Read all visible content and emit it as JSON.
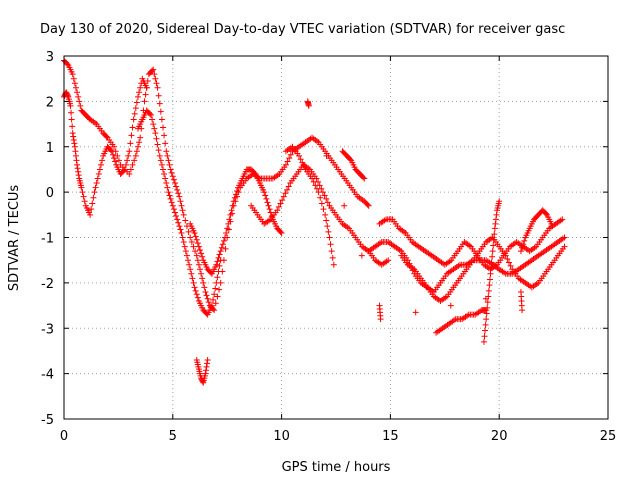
{
  "chart_data": {
    "type": "scatter",
    "title": "Day 130 of 2020, Sidereal Day-to-day VTEC variation (SDTVAR) for receiver gasc",
    "xlabel": "GPS time / hours",
    "ylabel": "SDTVAR / TECUs",
    "xlim": [
      0,
      25
    ],
    "ylim": [
      -5,
      3
    ],
    "xticks": [
      "0",
      "5",
      "10",
      "15",
      "20",
      "25"
    ],
    "yticks": [
      "3",
      "2",
      "1",
      "0",
      "-1",
      "-2",
      "-3",
      "-4",
      "-5"
    ],
    "grid": true,
    "marker": "+",
    "series": [
      {
        "name": "SDTVAR",
        "color": "#ff0000",
        "tracks": [
          {
            "x": [
              0.0,
              0.2,
              0.4,
              0.6,
              0.8,
              1.0,
              1.2,
              1.5,
              1.8,
              2.0,
              2.3,
              2.6,
              3.0,
              3.3,
              3.5,
              3.7,
              3.9,
              4.1,
              4.3,
              4.5,
              4.7,
              4.9,
              5.1,
              5.3,
              5.5,
              5.8,
              6.1,
              6.3,
              6.5,
              6.7,
              6.9,
              7.2,
              7.5,
              7.8,
              8.1,
              8.4,
              8.7,
              9.0,
              9.3,
              9.6,
              9.9,
              10.2,
              10.5,
              10.8,
              11.1,
              11.4,
              11.7,
              12.0,
              12.3,
              12.6,
              12.9,
              13.2,
              13.5,
              13.8,
              14.0
            ],
            "y": [
              2.9,
              2.8,
              2.6,
              2.2,
              1.8,
              1.7,
              1.6,
              1.5,
              1.3,
              1.2,
              1.0,
              0.6,
              0.4,
              0.8,
              1.2,
              2.0,
              2.6,
              2.7,
              2.3,
              1.6,
              0.9,
              0.5,
              0.2,
              -0.1,
              -0.5,
              -1.0,
              -1.4,
              -1.8,
              -2.2,
              -2.5,
              -2.6,
              -2.0,
              -1.0,
              -0.3,
              0.1,
              0.3,
              0.4,
              0.3,
              0.3,
              0.3,
              0.4,
              0.6,
              0.9,
              1.0,
              1.1,
              1.2,
              1.1,
              0.9,
              0.7,
              0.5,
              0.3,
              0.1,
              -0.1,
              -0.2,
              -0.3
            ]
          },
          {
            "x": [
              0.0,
              0.1,
              0.2,
              0.3,
              0.4,
              0.5,
              0.6,
              0.7,
              0.8,
              1.0,
              1.2,
              1.4,
              1.6,
              1.8,
              2.0,
              2.2,
              2.4,
              2.6,
              2.8,
              3.0,
              3.2,
              3.4,
              3.6,
              3.8
            ],
            "y": [
              2.1,
              2.2,
              2.1,
              1.9,
              1.3,
              1.0,
              0.6,
              0.3,
              0.1,
              -0.3,
              -0.5,
              0.0,
              0.4,
              0.8,
              1.0,
              0.9,
              0.6,
              0.4,
              0.5,
              0.9,
              1.6,
              2.1,
              2.5,
              2.3
            ]
          },
          {
            "x": [
              3.4,
              3.6,
              3.8,
              4.0,
              4.2,
              4.4,
              4.6,
              4.8,
              5.0,
              5.2,
              5.4,
              5.6,
              5.8,
              6.0,
              6.2,
              6.4,
              6.6,
              6.8,
              7.0,
              7.2
            ],
            "y": [
              1.4,
              1.6,
              1.8,
              1.7,
              1.3,
              0.8,
              0.4,
              0.0,
              -0.3,
              -0.6,
              -0.9,
              -1.3,
              -1.7,
              -2.1,
              -2.4,
              -2.6,
              -2.7,
              -2.5,
              -2.0,
              -1.5
            ]
          },
          {
            "x": [
              5.8,
              6.0,
              6.2,
              6.4,
              6.6,
              6.8,
              7.0,
              7.2,
              7.4,
              7.6,
              7.8,
              8.0,
              8.2,
              8.4,
              8.6,
              8.8,
              9.0,
              9.2,
              9.4,
              9.6,
              9.8,
              10.0
            ],
            "y": [
              -0.7,
              -0.9,
              -1.2,
              -1.5,
              -1.7,
              -1.8,
              -1.6,
              -1.3,
              -1.0,
              -0.6,
              -0.2,
              0.1,
              0.3,
              0.5,
              0.5,
              0.4,
              0.2,
              0.0,
              -0.3,
              -0.6,
              -0.8,
              -0.9
            ]
          },
          {
            "x": [
              8.6,
              8.9,
              9.2,
              9.5,
              9.8,
              10.1,
              10.4,
              10.7,
              11.0,
              11.3,
              11.6,
              11.9,
              12.2,
              12.5,
              12.8,
              13.1,
              13.4,
              13.7,
              14.0,
              14.3,
              14.6,
              14.9
            ],
            "y": [
              -0.3,
              -0.5,
              -0.7,
              -0.6,
              -0.4,
              -0.1,
              0.2,
              0.4,
              0.6,
              0.5,
              0.3,
              0.0,
              -0.3,
              -0.5,
              -0.7,
              -0.8,
              -1.0,
              -1.2,
              -1.3,
              -1.5,
              -1.6,
              -1.5
            ]
          },
          {
            "x": [
              10.2,
              10.5,
              10.8,
              11.1,
              11.4,
              11.7,
              12.0,
              12.2,
              12.4
            ],
            "y": [
              0.9,
              1.0,
              0.8,
              0.5,
              0.3,
              0.0,
              -0.5,
              -1.0,
              -1.6
            ]
          },
          {
            "x": [
              12.8,
              13.0,
              13.2,
              13.4,
              13.6,
              13.8
            ],
            "y": [
              0.9,
              0.8,
              0.7,
              0.5,
              0.4,
              0.3
            ]
          },
          {
            "x": [
              14.0,
              14.3,
              14.6,
              14.9,
              15.2,
              15.5,
              15.8,
              16.1,
              16.4,
              16.7,
              17.0,
              17.3,
              17.6,
              17.9,
              18.2,
              18.5,
              18.8,
              19.1,
              19.4,
              19.7,
              20.0,
              20.3,
              20.6,
              20.9,
              21.2,
              21.5,
              21.8,
              22.1,
              22.4,
              22.7,
              23.0
            ],
            "y": [
              -1.3,
              -1.2,
              -1.1,
              -1.1,
              -1.2,
              -1.3,
              -1.5,
              -1.8,
              -2.0,
              -2.1,
              -2.2,
              -2.0,
              -1.8,
              -1.7,
              -1.6,
              -1.6,
              -1.5,
              -1.5,
              -1.5,
              -1.6,
              -1.7,
              -1.8,
              -1.8,
              -1.7,
              -1.6,
              -1.5,
              -1.4,
              -1.3,
              -1.2,
              -1.1,
              -1.0
            ]
          },
          {
            "x": [
              14.5,
              14.8,
              15.1,
              15.4,
              15.7,
              16.0,
              16.3,
              16.6,
              16.9,
              17.2,
              17.5,
              17.8,
              18.1,
              18.4,
              18.7,
              19.0,
              19.3,
              19.6,
              19.9,
              20.2,
              20.5,
              20.8,
              21.1,
              21.4,
              21.7,
              22.0,
              22.3,
              22.6,
              22.9
            ],
            "y": [
              -0.7,
              -0.6,
              -0.6,
              -0.8,
              -0.9,
              -1.1,
              -1.2,
              -1.3,
              -1.4,
              -1.5,
              -1.6,
              -1.5,
              -1.3,
              -1.1,
              -1.2,
              -1.4,
              -1.6,
              -1.7,
              -1.6,
              -1.4,
              -1.2,
              -1.1,
              -1.2,
              -1.3,
              -1.2,
              -1.0,
              -0.8,
              -0.7,
              -0.6
            ]
          },
          {
            "x": [
              15.5,
              15.8,
              16.1,
              16.4,
              16.7,
              17.0,
              17.3,
              17.6,
              17.9,
              18.2,
              18.5,
              18.8,
              19.1,
              19.4,
              19.7,
              20.0,
              20.3,
              20.6,
              20.9,
              21.2,
              21.5,
              21.8,
              22.1,
              22.4,
              22.7,
              23.0
            ],
            "y": [
              -1.4,
              -1.6,
              -1.7,
              -1.9,
              -2.1,
              -2.3,
              -2.4,
              -2.3,
              -2.1,
              -1.9,
              -1.7,
              -1.5,
              -1.3,
              -1.1,
              -1.0,
              -1.2,
              -1.4,
              -1.7,
              -1.9,
              -2.0,
              -2.1,
              -2.0,
              -1.8,
              -1.6,
              -1.4,
              -1.2
            ]
          },
          {
            "x": [
              17.1,
              17.4,
              17.7,
              18.0,
              18.3,
              18.6,
              18.9,
              19.2,
              19.4
            ],
            "y": [
              -3.1,
              -3.0,
              -2.9,
              -2.8,
              -2.8,
              -2.7,
              -2.7,
              -2.6,
              -2.6
            ]
          },
          {
            "x": [
              19.3,
              19.4,
              19.5,
              19.6,
              19.7,
              19.8,
              19.9,
              20.0
            ],
            "y": [
              -3.3,
              -2.8,
              -2.3,
              -1.8,
              -1.3,
              -0.8,
              -0.4,
              -0.2
            ]
          },
          {
            "x": [
              21.0,
              21.2,
              21.4,
              21.6,
              21.8,
              22.0,
              22.2,
              22.4
            ],
            "y": [
              -1.3,
              -1.0,
              -0.8,
              -0.6,
              -0.5,
              -0.4,
              -0.5,
              -0.7
            ]
          },
          {
            "x": [
              6.1,
              6.2,
              6.3,
              6.4,
              6.5,
              6.6
            ],
            "y": [
              -3.7,
              -3.9,
              -4.1,
              -4.2,
              -4.0,
              -3.7
            ]
          },
          {
            "x": [
              11.2,
              11.25,
              14.5,
              14.55,
              21.0,
              21.05
            ],
            "y": [
              2.0,
              1.9,
              -2.5,
              -2.8,
              -2.2,
              -2.6
            ]
          }
        ]
      }
    ]
  }
}
